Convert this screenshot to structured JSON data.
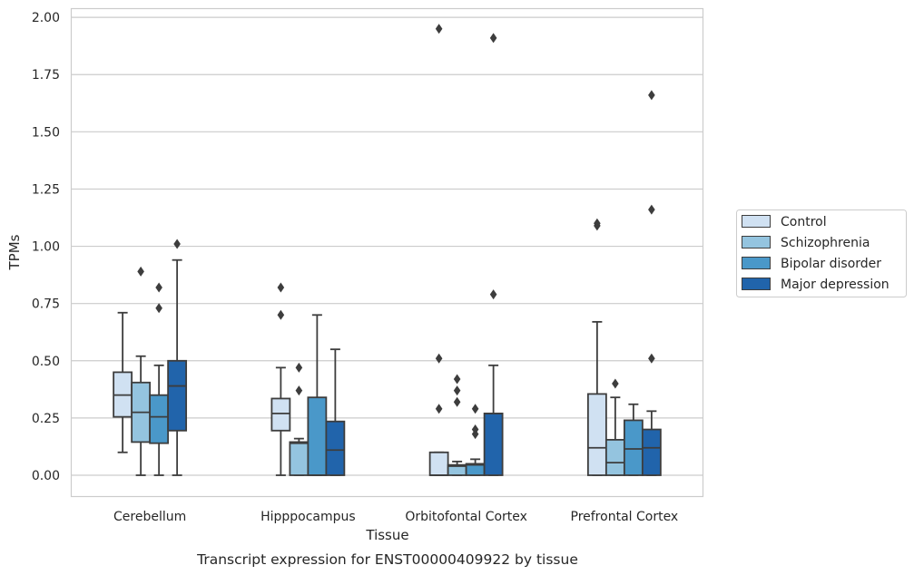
{
  "chart_data": {
    "type": "box",
    "title": "",
    "caption": "Transcript expression for ENST00000409922 by tissue",
    "xlabel": "Tissue",
    "ylabel": "TPMs",
    "ylim": [
      -0.095,
      2.04
    ],
    "yticks": [
      0.0,
      0.25,
      0.5,
      0.75,
      1.0,
      1.25,
      1.5,
      1.75,
      2.0
    ],
    "ytick_labels": [
      "0.00",
      "0.25",
      "0.50",
      "0.75",
      "1.00",
      "1.25",
      "1.50",
      "1.75",
      "2.00"
    ],
    "grid": true,
    "legend_position": "right",
    "categories": [
      "Cerebellum",
      "Hipppocampus",
      "Orbitofontal Cortex",
      "Prefrontal Cortex"
    ],
    "series": [
      {
        "name": "Control",
        "color": "#d0e1f2",
        "boxes": [
          {
            "whislo": 0.1,
            "q1": 0.255,
            "med": 0.35,
            "q3": 0.45,
            "whishi": 0.71,
            "fliers": []
          },
          {
            "whislo": 0.0,
            "q1": 0.195,
            "med": 0.27,
            "q3": 0.335,
            "whishi": 0.47,
            "fliers": [
              0.7,
              0.82
            ]
          },
          {
            "whislo": 0.0,
            "q1": 0.0,
            "med": 0.0,
            "q3": 0.1,
            "whishi": 0.1,
            "fliers": [
              0.29,
              0.51,
              1.95
            ]
          },
          {
            "whislo": 0.0,
            "q1": 0.0,
            "med": 0.12,
            "q3": 0.355,
            "whishi": 0.67,
            "fliers": [
              1.09,
              1.1
            ]
          }
        ]
      },
      {
        "name": "Schizophrenia",
        "color": "#94c4df",
        "boxes": [
          {
            "whislo": 0.0,
            "q1": 0.145,
            "med": 0.275,
            "q3": 0.405,
            "whishi": 0.52,
            "fliers": [
              0.89
            ]
          },
          {
            "whislo": 0.0,
            "q1": 0.0,
            "med": 0.14,
            "q3": 0.145,
            "whishi": 0.16,
            "fliers": [
              0.37,
              0.47
            ]
          },
          {
            "whislo": 0.0,
            "q1": 0.0,
            "med": 0.04,
            "q3": 0.045,
            "whishi": 0.06,
            "fliers": [
              0.32,
              0.37,
              0.42
            ]
          },
          {
            "whislo": 0.0,
            "q1": 0.0,
            "med": 0.055,
            "q3": 0.155,
            "whishi": 0.34,
            "fliers": [
              0.4
            ]
          }
        ]
      },
      {
        "name": "Bipolar disorder",
        "color": "#4a98c9",
        "boxes": [
          {
            "whislo": 0.0,
            "q1": 0.14,
            "med": 0.255,
            "q3": 0.35,
            "whishi": 0.48,
            "fliers": [
              0.73,
              0.82
            ]
          },
          {
            "whislo": 0.0,
            "q1": 0.0,
            "med": 0.0,
            "q3": 0.34,
            "whishi": 0.7,
            "fliers": []
          },
          {
            "whislo": 0.0,
            "q1": 0.0,
            "med": 0.045,
            "q3": 0.05,
            "whishi": 0.07,
            "fliers": [
              0.18,
              0.2,
              0.29
            ]
          },
          {
            "whislo": 0.0,
            "q1": 0.0,
            "med": 0.115,
            "q3": 0.24,
            "whishi": 0.31,
            "fliers": []
          }
        ]
      },
      {
        "name": "Major depression",
        "color": "#2164ab",
        "boxes": [
          {
            "whislo": 0.0,
            "q1": 0.195,
            "med": 0.39,
            "q3": 0.5,
            "whishi": 0.94,
            "fliers": [
              1.01
            ]
          },
          {
            "whislo": 0.0,
            "q1": 0.0,
            "med": 0.11,
            "q3": 0.235,
            "whishi": 0.55,
            "fliers": []
          },
          {
            "whislo": 0.0,
            "q1": 0.0,
            "med": 0.27,
            "q3": 0.27,
            "whishi": 0.48,
            "fliers": [
              0.79,
              1.91
            ]
          },
          {
            "whislo": 0.0,
            "q1": 0.0,
            "med": 0.12,
            "q3": 0.2,
            "whishi": 0.28,
            "fliers": [
              0.51,
              1.16,
              1.66
            ]
          }
        ]
      }
    ]
  }
}
